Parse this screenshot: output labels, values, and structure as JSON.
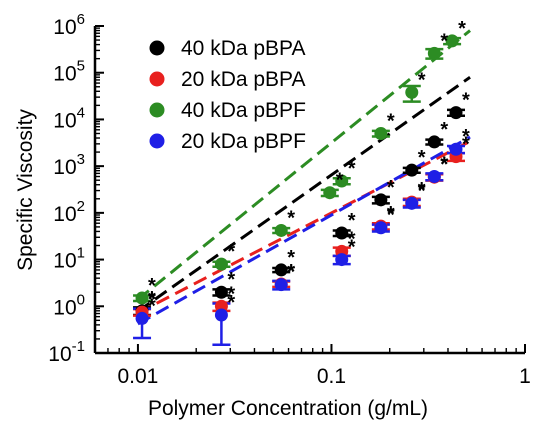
{
  "chart_data": {
    "type": "scatter",
    "xlabel": "Polymer Concentration (g/mL)",
    "ylabel": "Specific Viscosity",
    "x_scale": "log",
    "y_scale": "log",
    "xlim": [
      0.006,
      1
    ],
    "ylim": [
      0.1,
      1000000
    ],
    "x_ticks": [
      {
        "value": 0.01,
        "label": "0.01"
      },
      {
        "value": 0.1,
        "label": "0.1"
      },
      {
        "value": 1,
        "label": "1"
      }
    ],
    "y_ticks": [
      {
        "value": 0.1,
        "base": "10",
        "exp": "-1"
      },
      {
        "value": 1,
        "base": "10",
        "exp": "0"
      },
      {
        "value": 10,
        "base": "10",
        "exp": "1"
      },
      {
        "value": 100,
        "base": "10",
        "exp": "2"
      },
      {
        "value": 1000,
        "base": "10",
        "exp": "3"
      },
      {
        "value": 10000,
        "base": "10",
        "exp": "4"
      },
      {
        "value": 100000,
        "base": "10",
        "exp": "5"
      },
      {
        "value": 1000000,
        "base": "10",
        "exp": "6"
      }
    ],
    "grid": false,
    "legend_position": "top-left",
    "annotation_marker": "*",
    "series": [
      {
        "name": "40 kDa pBPA",
        "color": "#000000",
        "x": [
          0.0105,
          0.027,
          0.055,
          0.113,
          0.18,
          0.26,
          0.34,
          0.44
        ],
        "y": [
          0.8,
          2.0,
          6.0,
          37,
          190,
          820,
          3300,
          14000
        ],
        "err": [
          0.15,
          0.3,
          0.6,
          5,
          30,
          100,
          400,
          2000
        ],
        "fit_x": [
          0.01,
          0.52
        ],
        "fit_y": [
          0.78,
          80000
        ]
      },
      {
        "name": "20 kDa pBPA",
        "color": "#e8201e",
        "x": [
          0.0105,
          0.027,
          0.055,
          0.113,
          0.18,
          0.26,
          0.34,
          0.44
        ],
        "y": [
          0.75,
          1.0,
          3.0,
          15,
          52,
          170,
          580,
          1600
        ],
        "err": [
          0.12,
          0.2,
          0.4,
          3,
          8,
          30,
          90,
          300
        ],
        "fit_x": [
          0.01,
          0.52
        ],
        "fit_y": [
          0.72,
          3400
        ]
      },
      {
        "name": "40 kDa pBPF",
        "color": "#2c8c23",
        "x": [
          0.0105,
          0.027,
          0.055,
          0.098,
          0.113,
          0.18,
          0.26,
          0.34,
          0.42
        ],
        "y": [
          1.5,
          8.0,
          42,
          270,
          480,
          5000,
          38000,
          260000,
          480000
        ],
        "err": [
          0.2,
          1,
          5,
          40,
          70,
          700,
          14000,
          60000,
          70000
        ],
        "fit_x": [
          0.01,
          0.52
        ],
        "fit_y": [
          1.4,
          800000
        ]
      },
      {
        "name": "20 kDa pBPF",
        "color": "#1f1fe6",
        "x": [
          0.0105,
          0.027,
          0.055,
          0.113,
          0.18,
          0.26,
          0.34,
          0.44
        ],
        "y": [
          0.55,
          0.65,
          2.9,
          10,
          48,
          160,
          600,
          2300
        ],
        "err": [
          0.34,
          0.5,
          0.6,
          2,
          8,
          30,
          100,
          400
        ],
        "fit_x": [
          0.01,
          0.52
        ],
        "fit_y": [
          0.42,
          4200
        ]
      }
    ]
  }
}
